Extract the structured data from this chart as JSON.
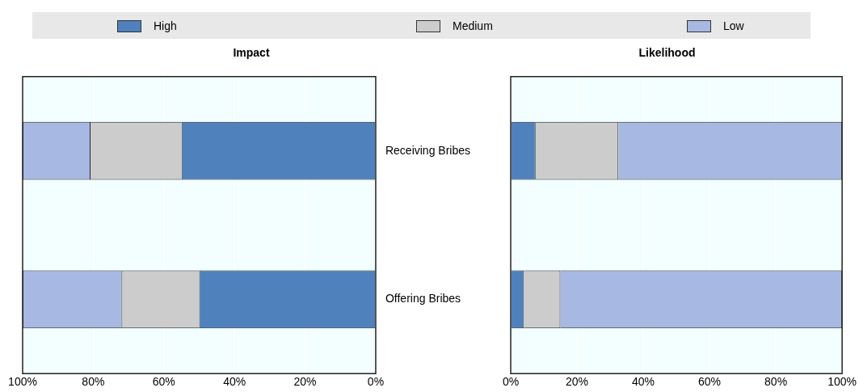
{
  "chart_data": [
    {
      "type": "bar",
      "title": "Impact",
      "orientation": "horizontal",
      "stacked": true,
      "categories": [
        "Receiving Bribes",
        "Offering Bribes"
      ],
      "series": [
        {
          "name": "High",
          "color": "#4f81bd",
          "values": [
            55,
            50
          ]
        },
        {
          "name": "Medium",
          "color": "#cccccc",
          "values": [
            26,
            22
          ]
        },
        {
          "name": "Low",
          "color": "#a7b9e3",
          "values": [
            19,
            28
          ]
        }
      ],
      "xlim": [
        100,
        0
      ],
      "xticks": [
        {
          "value": 100,
          "label": "100%"
        },
        {
          "value": 80,
          "label": "80%"
        },
        {
          "value": 60,
          "label": "60%"
        },
        {
          "value": 40,
          "label": "40%"
        },
        {
          "value": 20,
          "label": "20%"
        },
        {
          "value": 0,
          "label": "0%"
        }
      ],
      "grid": "x",
      "legend": "top"
    },
    {
      "type": "bar",
      "title": "Likelihood",
      "orientation": "horizontal",
      "stacked": true,
      "categories": [
        null,
        null
      ],
      "series": [
        {
          "color": "#4f81bd",
          "values": [
            7.5,
            4
          ]
        },
        {
          "color": "#cccccc",
          "values": [
            25,
            11
          ]
        },
        {
          "color": "#a7b9e3",
          "values": [
            67.5,
            85
          ]
        }
      ],
      "xlim": [
        0,
        100
      ],
      "xticks": [
        {
          "value": 0,
          "label": "0%"
        },
        {
          "value": 20,
          "label": "20%"
        },
        {
          "value": 40,
          "label": "40%"
        },
        {
          "value": 60,
          "label": "60%"
        },
        {
          "value": 80,
          "label": "80%"
        },
        {
          "value": 100,
          "label": "100%"
        }
      ],
      "grid": "x"
    }
  ]
}
